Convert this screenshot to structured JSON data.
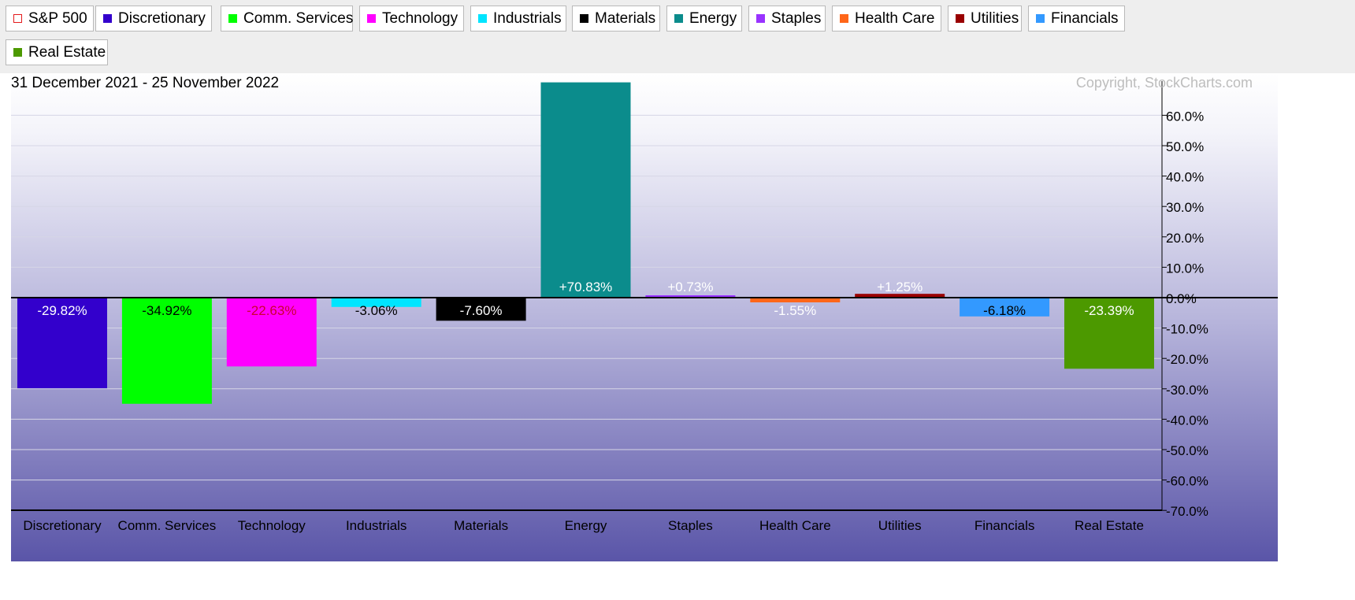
{
  "legend": [
    {
      "label": "S&P 500",
      "color": "#e41a1c",
      "outline": true
    },
    {
      "label": "Discretionary",
      "color": "#3300cc"
    },
    {
      "label": "Comm. Services",
      "color": "#00ff00"
    },
    {
      "label": "Technology",
      "color": "#ff00ff"
    },
    {
      "label": "Industrials",
      "color": "#00e5ff"
    },
    {
      "label": "Materials",
      "color": "#000000"
    },
    {
      "label": "Energy",
      "color": "#0b8c8c"
    },
    {
      "label": "Staples",
      "color": "#9933ff"
    },
    {
      "label": "Health Care",
      "color": "#ff6619"
    },
    {
      "label": "Utilities",
      "color": "#990000"
    },
    {
      "label": "Financials",
      "color": "#3399ff"
    },
    {
      "label": "Real Estate",
      "color": "#4c9900"
    }
  ],
  "chart_data": {
    "type": "bar",
    "title": "31 December 2021 - 25 November 2022",
    "copyright": "Copyright, StockCharts.com",
    "categories": [
      "Discretionary",
      "Comm. Services",
      "Technology",
      "Industrials",
      "Materials",
      "Energy",
      "Staples",
      "Health Care",
      "Utilities",
      "Financials",
      "Real Estate"
    ],
    "values": [
      -29.82,
      -34.92,
      -22.63,
      -3.06,
      -7.6,
      70.83,
      0.73,
      -1.55,
      1.25,
      -6.18,
      -23.39
    ],
    "value_labels": [
      "-29.82%",
      "-34.92%",
      "-22.63%",
      "-3.06%",
      "-7.60%",
      "+70.83%",
      "+0.73%",
      "-1.55%",
      "+1.25%",
      "-6.18%",
      "-23.39%"
    ],
    "colors": [
      "#3300cc",
      "#00ff00",
      "#ff00ff",
      "#00e5ff",
      "#000000",
      "#0b8c8c",
      "#9933ff",
      "#ff6619",
      "#990000",
      "#3399ff",
      "#4c9900"
    ],
    "label_colors": [
      "#ffffff",
      "#000000",
      "#cc0033",
      "#000000",
      "#ffffff",
      "#ffffff",
      "#ffffff",
      "#ffffff",
      "#ffffff",
      "#000000",
      "#ffffff"
    ],
    "yticks": [
      60,
      50,
      40,
      30,
      20,
      10,
      0,
      -10,
      -20,
      -30,
      -40,
      -50,
      -60,
      -70
    ],
    "ytick_labels": [
      "60.0%",
      "50.0%",
      "40.0%",
      "30.0%",
      "20.0%",
      "10.0%",
      "0.0%",
      "-10.0%",
      "-20.0%",
      "-30.0%",
      "-40.0%",
      "-50.0%",
      "-60.0%",
      "-70.0%"
    ],
    "ylim": [
      -70,
      70
    ],
    "grid": true,
    "legend_position": "top"
  }
}
